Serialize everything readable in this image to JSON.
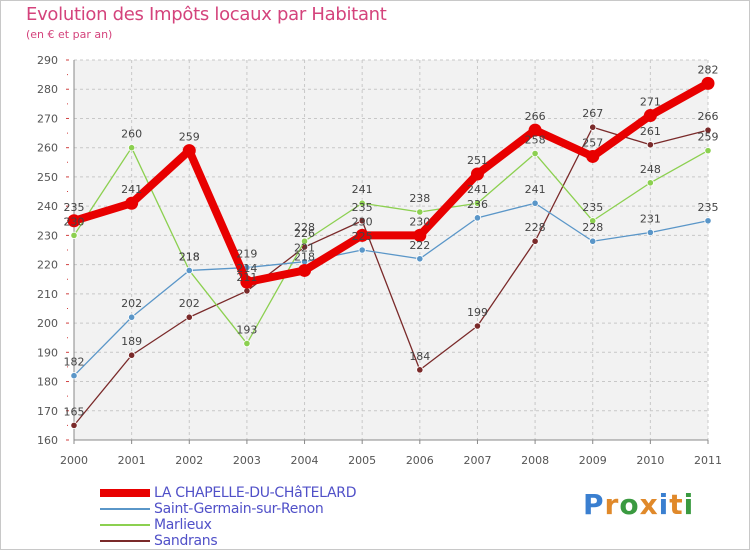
{
  "chart_data": {
    "type": "line",
    "title": "Evolution des Impôts locaux par Habitant",
    "subtitle": "(en € et par an)",
    "x": [
      "2000",
      "2001",
      "2002",
      "2003",
      "2004",
      "2005",
      "2006",
      "2007",
      "2008",
      "2009",
      "2010",
      "2011"
    ],
    "ylim": [
      160,
      290
    ],
    "yticks": [
      "160",
      "170",
      "180",
      "190",
      "200",
      "210",
      "220",
      "230",
      "240",
      "250",
      "260",
      "270",
      "280",
      "290"
    ],
    "series": [
      {
        "name": "Sandrans",
        "color": "#7a2a2a",
        "values": [
          165,
          189,
          202,
          211,
          226,
          235,
          184,
          199,
          228,
          267,
          261,
          266
        ],
        "labels": [
          "165",
          "189",
          "202",
          "211",
          "226",
          "235",
          "184",
          "199",
          "228",
          "267",
          "261",
          "266"
        ]
      },
      {
        "name": "Marlieux",
        "color": "#8cd050",
        "values": [
          230,
          260,
          218,
          193,
          228,
          241,
          238,
          241,
          258,
          235,
          248,
          259
        ],
        "labels": [
          "230",
          "260",
          "218",
          "193",
          "228",
          "241",
          "238",
          "241",
          "258",
          "235",
          "248",
          "259"
        ]
      },
      {
        "name": "Saint-Germain-sur-Renon",
        "color": "#5a96c8",
        "values": [
          182,
          202,
          218,
          219,
          221,
          225,
          222,
          236,
          241,
          228,
          231,
          235
        ],
        "labels": [
          "182",
          "202",
          "218",
          "219",
          "221",
          "225",
          "222",
          "236",
          "241",
          "228",
          "231",
          "235"
        ]
      },
      {
        "name": "LA CHAPELLE-DU-CHâTELARD",
        "color": "#e80000",
        "values": [
          235,
          241,
          259,
          214,
          218,
          230,
          230,
          251,
          266,
          257,
          271,
          282
        ],
        "labels": [
          "235",
          "241",
          "259",
          "214",
          "218",
          "230",
          "230",
          "251",
          "266",
          "257",
          "271",
          "282"
        ]
      }
    ],
    "legend_order": [
      "LA CHAPELLE-DU-CHâTELARD",
      "Saint-Germain-sur-Renon",
      "Marlieux",
      "Sandrans"
    ]
  },
  "legend": [
    {
      "label": "LA CHAPELLE-DU-CHâTELARD",
      "color": "#e80000"
    },
    {
      "label": "Saint-Germain-sur-Renon",
      "color": "#5a96c8"
    },
    {
      "label": "Marlieux",
      "color": "#8cd050"
    },
    {
      "label": "Sandrans",
      "color": "#7a2a2a"
    }
  ],
  "logo": {
    "letters": [
      "P",
      "r",
      "o",
      "x",
      "i",
      "t",
      "i"
    ],
    "colors": [
      "#3a7fd0",
      "#e0892a",
      "#3a9a40",
      "#e0892a",
      "#3a7fd0",
      "#e0892a",
      "#3a9a40"
    ]
  }
}
